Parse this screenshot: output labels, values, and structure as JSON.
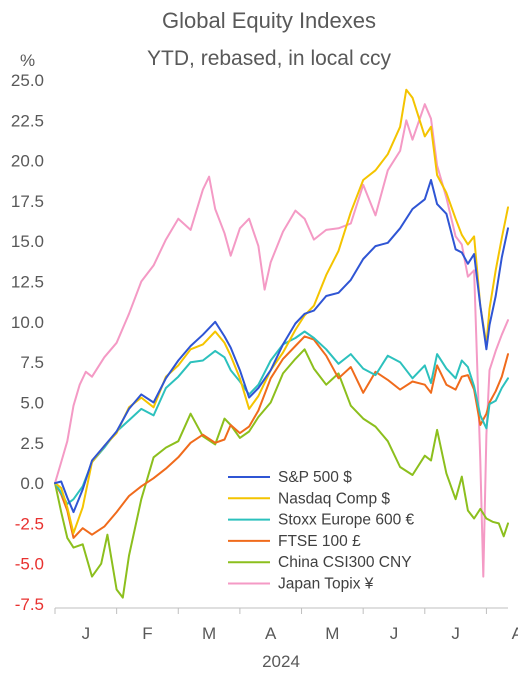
{
  "chart_data": {
    "type": "line",
    "title": "Global Equity Indexes",
    "subtitle": "YTD, rebased, in local ccy",
    "ylabel": "%",
    "ylim": [
      -7.5,
      25.0
    ],
    "y_ticks": [
      "25.0",
      "22.5",
      "20.0",
      "17.5",
      "15.0",
      "12.5",
      "10.0",
      "7.5",
      "5.0",
      "2.5",
      "0.0",
      "-2.5",
      "-5.0",
      "-7.5"
    ],
    "x_ticks": [
      "J",
      "F",
      "M",
      "A",
      "M",
      "J",
      "J",
      "A"
    ],
    "xlabel": "2024",
    "grid": false,
    "legend_position": "bottom-right",
    "negative_tick_color": "#e8312f",
    "positive_tick_color": "#595959",
    "x_range_months": [
      0,
      7.35
    ],
    "series": [
      {
        "name": "S&P 500 $",
        "color": "#2f55d4",
        "points": [
          [
            0,
            0
          ],
          [
            0.1,
            0.1
          ],
          [
            0.2,
            -0.9
          ],
          [
            0.3,
            -1.8
          ],
          [
            0.45,
            -0.4
          ],
          [
            0.6,
            1.4
          ],
          [
            0.8,
            2.3
          ],
          [
            1.0,
            3.2
          ],
          [
            1.2,
            4.6
          ],
          [
            1.4,
            5.5
          ],
          [
            1.6,
            5.0
          ],
          [
            1.8,
            6.5
          ],
          [
            2.0,
            7.6
          ],
          [
            2.2,
            8.5
          ],
          [
            2.4,
            9.2
          ],
          [
            2.6,
            10.0
          ],
          [
            2.75,
            9.1
          ],
          [
            2.85,
            8.4
          ],
          [
            3.0,
            7.0
          ],
          [
            3.15,
            5.3
          ],
          [
            3.3,
            5.9
          ],
          [
            3.5,
            7.0
          ],
          [
            3.7,
            8.6
          ],
          [
            3.9,
            9.9
          ],
          [
            4.05,
            10.5
          ],
          [
            4.2,
            10.7
          ],
          [
            4.4,
            11.6
          ],
          [
            4.6,
            11.8
          ],
          [
            4.8,
            12.6
          ],
          [
            5.0,
            13.9
          ],
          [
            5.2,
            14.7
          ],
          [
            5.4,
            14.9
          ],
          [
            5.6,
            15.8
          ],
          [
            5.8,
            17.0
          ],
          [
            6.0,
            17.6
          ],
          [
            6.1,
            18.8
          ],
          [
            6.2,
            17.3
          ],
          [
            6.35,
            16.7
          ],
          [
            6.5,
            14.5
          ],
          [
            6.6,
            14.3
          ],
          [
            6.7,
            13.6
          ],
          [
            6.8,
            14.2
          ],
          [
            6.9,
            11.0
          ],
          [
            7.0,
            8.3
          ],
          [
            7.05,
            9.8
          ],
          [
            7.15,
            11.6
          ],
          [
            7.25,
            14.0
          ],
          [
            7.35,
            15.8
          ]
        ]
      },
      {
        "name": "Nasdaq Comp $",
        "color": "#f4c400",
        "points": [
          [
            0,
            0
          ],
          [
            0.1,
            -0.3
          ],
          [
            0.2,
            -1.5
          ],
          [
            0.3,
            -3.1
          ],
          [
            0.45,
            -1.5
          ],
          [
            0.6,
            1.3
          ],
          [
            0.8,
            2.3
          ],
          [
            1.0,
            3.1
          ],
          [
            1.2,
            4.7
          ],
          [
            1.4,
            5.3
          ],
          [
            1.6,
            4.7
          ],
          [
            1.8,
            6.6
          ],
          [
            2.0,
            7.3
          ],
          [
            2.2,
            8.3
          ],
          [
            2.4,
            8.6
          ],
          [
            2.6,
            9.4
          ],
          [
            2.75,
            8.7
          ],
          [
            2.85,
            7.9
          ],
          [
            3.0,
            6.5
          ],
          [
            3.15,
            4.6
          ],
          [
            3.3,
            5.4
          ],
          [
            3.5,
            7.0
          ],
          [
            3.7,
            8.1
          ],
          [
            3.9,
            9.5
          ],
          [
            4.05,
            10.4
          ],
          [
            4.2,
            11.0
          ],
          [
            4.4,
            12.9
          ],
          [
            4.6,
            14.4
          ],
          [
            4.8,
            16.8
          ],
          [
            5.0,
            18.8
          ],
          [
            5.2,
            19.4
          ],
          [
            5.4,
            20.4
          ],
          [
            5.6,
            22.1
          ],
          [
            5.7,
            24.4
          ],
          [
            5.8,
            23.9
          ],
          [
            6.0,
            21.5
          ],
          [
            6.1,
            22.1
          ],
          [
            6.2,
            19.1
          ],
          [
            6.35,
            18.0
          ],
          [
            6.5,
            16.4
          ],
          [
            6.6,
            15.4
          ],
          [
            6.7,
            14.8
          ],
          [
            6.8,
            15.3
          ],
          [
            6.9,
            11.0
          ],
          [
            7.0,
            8.6
          ],
          [
            7.05,
            10.8
          ],
          [
            7.15,
            13.2
          ],
          [
            7.25,
            15.2
          ],
          [
            7.35,
            17.1
          ]
        ]
      },
      {
        "name": "Stoxx Europe 600 €",
        "color": "#2cc1bd",
        "points": [
          [
            0,
            0
          ],
          [
            0.1,
            -0.6
          ],
          [
            0.2,
            -1.3
          ],
          [
            0.3,
            -1.0
          ],
          [
            0.45,
            -0.2
          ],
          [
            0.6,
            1.3
          ],
          [
            0.8,
            2.2
          ],
          [
            1.0,
            3.2
          ],
          [
            1.2,
            3.9
          ],
          [
            1.4,
            4.6
          ],
          [
            1.6,
            4.2
          ],
          [
            1.8,
            5.9
          ],
          [
            2.0,
            6.6
          ],
          [
            2.2,
            7.5
          ],
          [
            2.4,
            7.6
          ],
          [
            2.6,
            8.2
          ],
          [
            2.75,
            7.8
          ],
          [
            2.85,
            7.0
          ],
          [
            3.0,
            6.3
          ],
          [
            3.15,
            5.5
          ],
          [
            3.3,
            6.1
          ],
          [
            3.5,
            7.6
          ],
          [
            3.7,
            8.6
          ],
          [
            3.9,
            9.0
          ],
          [
            4.05,
            9.4
          ],
          [
            4.2,
            9.0
          ],
          [
            4.4,
            8.3
          ],
          [
            4.6,
            7.4
          ],
          [
            4.8,
            8.0
          ],
          [
            5.0,
            7.1
          ],
          [
            5.2,
            6.7
          ],
          [
            5.4,
            7.9
          ],
          [
            5.6,
            7.5
          ],
          [
            5.8,
            6.5
          ],
          [
            6.0,
            7.3
          ],
          [
            6.1,
            6.2
          ],
          [
            6.2,
            8.0
          ],
          [
            6.35,
            7.1
          ],
          [
            6.5,
            6.5
          ],
          [
            6.6,
            7.6
          ],
          [
            6.7,
            7.2
          ],
          [
            6.8,
            6.0
          ],
          [
            6.9,
            4.2
          ],
          [
            7.0,
            3.4
          ],
          [
            7.05,
            4.9
          ],
          [
            7.15,
            5.1
          ],
          [
            7.25,
            5.9
          ],
          [
            7.35,
            6.5
          ]
        ]
      },
      {
        "name": "FTSE 100 £",
        "color": "#f06b1c",
        "points": [
          [
            0,
            0
          ],
          [
            0.1,
            -0.7
          ],
          [
            0.2,
            -1.7
          ],
          [
            0.3,
            -3.4
          ],
          [
            0.45,
            -2.8
          ],
          [
            0.6,
            -3.2
          ],
          [
            0.8,
            -2.7
          ],
          [
            1.0,
            -1.8
          ],
          [
            1.2,
            -0.8
          ],
          [
            1.4,
            -0.2
          ],
          [
            1.6,
            0.3
          ],
          [
            1.8,
            0.9
          ],
          [
            2.0,
            1.6
          ],
          [
            2.2,
            2.5
          ],
          [
            2.4,
            3.0
          ],
          [
            2.6,
            2.5
          ],
          [
            2.75,
            2.7
          ],
          [
            2.85,
            3.6
          ],
          [
            3.0,
            3.1
          ],
          [
            3.15,
            3.5
          ],
          [
            3.3,
            4.5
          ],
          [
            3.5,
            6.5
          ],
          [
            3.7,
            7.7
          ],
          [
            3.9,
            8.5
          ],
          [
            4.05,
            9.1
          ],
          [
            4.2,
            8.9
          ],
          [
            4.4,
            7.9
          ],
          [
            4.6,
            6.5
          ],
          [
            4.8,
            7.2
          ],
          [
            5.0,
            5.6
          ],
          [
            5.2,
            6.9
          ],
          [
            5.4,
            6.4
          ],
          [
            5.6,
            5.8
          ],
          [
            5.8,
            6.3
          ],
          [
            6.0,
            6.1
          ],
          [
            6.1,
            5.6
          ],
          [
            6.2,
            7.3
          ],
          [
            6.35,
            6.1
          ],
          [
            6.5,
            5.8
          ],
          [
            6.6,
            6.6
          ],
          [
            6.7,
            6.7
          ],
          [
            6.8,
            5.8
          ],
          [
            6.9,
            3.6
          ],
          [
            7.0,
            4.3
          ],
          [
            7.05,
            5.0
          ],
          [
            7.15,
            5.7
          ],
          [
            7.25,
            6.6
          ],
          [
            7.35,
            8.0
          ]
        ]
      },
      {
        "name": "China CSI300 CNY",
        "color": "#8cbf1d",
        "points": [
          [
            0,
            0
          ],
          [
            0.1,
            -1.8
          ],
          [
            0.2,
            -3.4
          ],
          [
            0.3,
            -4.0
          ],
          [
            0.45,
            -3.8
          ],
          [
            0.6,
            -5.8
          ],
          [
            0.75,
            -5.0
          ],
          [
            0.85,
            -3.2
          ],
          [
            1.0,
            -6.6
          ],
          [
            1.1,
            -7.1
          ],
          [
            1.2,
            -4.5
          ],
          [
            1.4,
            -1.0
          ],
          [
            1.6,
            1.6
          ],
          [
            1.8,
            2.2
          ],
          [
            2.0,
            2.6
          ],
          [
            2.2,
            4.3
          ],
          [
            2.4,
            2.9
          ],
          [
            2.6,
            2.4
          ],
          [
            2.75,
            4.0
          ],
          [
            2.85,
            3.6
          ],
          [
            3.0,
            2.8
          ],
          [
            3.15,
            3.2
          ],
          [
            3.3,
            4.1
          ],
          [
            3.5,
            5.0
          ],
          [
            3.7,
            6.8
          ],
          [
            3.9,
            7.7
          ],
          [
            4.05,
            8.3
          ],
          [
            4.2,
            7.1
          ],
          [
            4.4,
            6.1
          ],
          [
            4.6,
            6.8
          ],
          [
            4.8,
            4.8
          ],
          [
            5.0,
            4.0
          ],
          [
            5.2,
            3.5
          ],
          [
            5.4,
            2.6
          ],
          [
            5.6,
            1.0
          ],
          [
            5.8,
            0.5
          ],
          [
            6.0,
            1.7
          ],
          [
            6.1,
            1.4
          ],
          [
            6.2,
            3.3
          ],
          [
            6.35,
            0.6
          ],
          [
            6.5,
            -1.0
          ],
          [
            6.6,
            0.4
          ],
          [
            6.7,
            -1.7
          ],
          [
            6.8,
            -2.2
          ],
          [
            6.9,
            -1.6
          ],
          [
            7.0,
            -2.2
          ],
          [
            7.1,
            -2.4
          ],
          [
            7.2,
            -2.5
          ],
          [
            7.28,
            -3.3
          ],
          [
            7.35,
            -2.5
          ]
        ]
      },
      {
        "name": "Japan Topix ¥",
        "color": "#f49ac5",
        "points": [
          [
            0,
            0
          ],
          [
            0.1,
            1.3
          ],
          [
            0.2,
            2.6
          ],
          [
            0.3,
            4.8
          ],
          [
            0.4,
            6.1
          ],
          [
            0.5,
            6.9
          ],
          [
            0.6,
            6.6
          ],
          [
            0.8,
            7.8
          ],
          [
            1.0,
            8.7
          ],
          [
            1.2,
            10.5
          ],
          [
            1.4,
            12.5
          ],
          [
            1.6,
            13.5
          ],
          [
            1.8,
            15.1
          ],
          [
            2.0,
            16.4
          ],
          [
            2.2,
            15.7
          ],
          [
            2.4,
            18.2
          ],
          [
            2.5,
            19.0
          ],
          [
            2.6,
            17.0
          ],
          [
            2.75,
            15.5
          ],
          [
            2.85,
            14.1
          ],
          [
            3.0,
            15.8
          ],
          [
            3.15,
            16.4
          ],
          [
            3.3,
            14.7
          ],
          [
            3.4,
            12.0
          ],
          [
            3.5,
            13.7
          ],
          [
            3.7,
            15.6
          ],
          [
            3.9,
            16.9
          ],
          [
            4.05,
            16.4
          ],
          [
            4.2,
            15.1
          ],
          [
            4.4,
            15.7
          ],
          [
            4.6,
            15.8
          ],
          [
            4.8,
            16.1
          ],
          [
            5.0,
            18.5
          ],
          [
            5.2,
            16.6
          ],
          [
            5.4,
            19.4
          ],
          [
            5.6,
            20.6
          ],
          [
            5.7,
            22.5
          ],
          [
            5.8,
            21.3
          ],
          [
            6.0,
            23.5
          ],
          [
            6.1,
            22.6
          ],
          [
            6.2,
            19.7
          ],
          [
            6.35,
            17.7
          ],
          [
            6.5,
            15.3
          ],
          [
            6.6,
            14.8
          ],
          [
            6.7,
            12.8
          ],
          [
            6.8,
            13.2
          ],
          [
            6.9,
            1.4
          ],
          [
            6.95,
            -5.8
          ],
          [
            7.0,
            3.0
          ],
          [
            7.05,
            7.0
          ],
          [
            7.15,
            8.2
          ],
          [
            7.25,
            9.2
          ],
          [
            7.35,
            10.1
          ]
        ]
      }
    ]
  }
}
